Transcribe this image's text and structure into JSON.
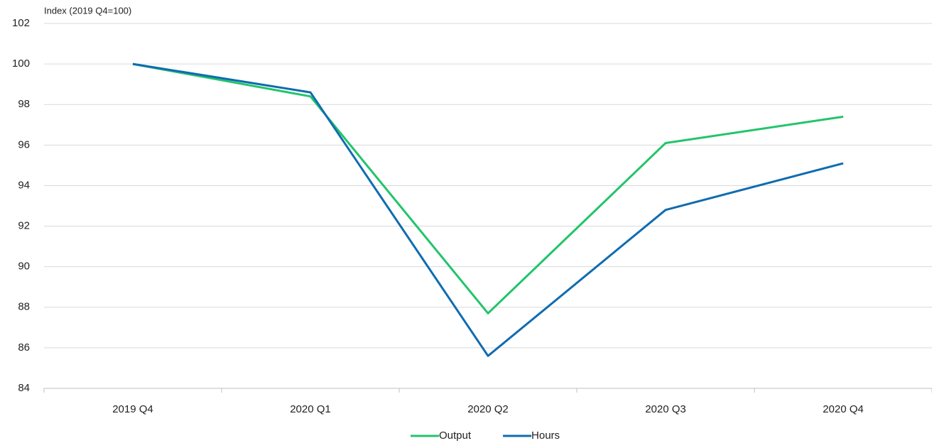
{
  "chart_data": {
    "type": "line",
    "y_label": "Index (2019 Q4=100)",
    "categories": [
      "2019 Q4",
      "2020 Q1",
      "2020 Q2",
      "2020 Q3",
      "2020 Q4"
    ],
    "series": [
      {
        "name": "Output",
        "color": "#22c46b",
        "values": [
          100,
          98.4,
          87.7,
          96.1,
          97.4
        ]
      },
      {
        "name": "Hours",
        "color": "#0f6cb0",
        "values": [
          100,
          98.6,
          85.6,
          92.8,
          95.1
        ]
      }
    ],
    "ylim": [
      84,
      102
    ],
    "yticks": [
      84,
      86,
      88,
      90,
      92,
      94,
      96,
      98,
      100,
      102
    ],
    "grid": true,
    "legend": "bottom"
  }
}
